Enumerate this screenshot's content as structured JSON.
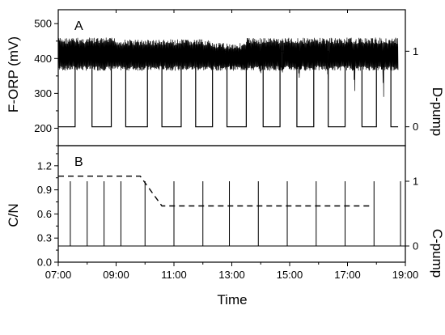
{
  "chart_data": [
    {
      "panel": "A",
      "type": "line",
      "xlabel": "Time",
      "ylabel": "F-ORP (mV)",
      "ylabel_right": "D-pump",
      "ylim": [
        150,
        540
      ],
      "y_right_lim": [
        -0.25,
        1.55
      ],
      "yticks": [
        200,
        300,
        400,
        500
      ],
      "yticks_right": [
        0,
        1
      ],
      "series": [
        {
          "type": "line",
          "oscillation_bands": [
            {
              "x_start": "07:00",
              "x_end": "09:00",
              "low": 365,
              "high": 460
            },
            {
              "x_start": "09:00",
              "x_end": "12:15",
              "low": 365,
              "high": 455
            },
            {
              "x_start": "12:15",
              "x_end": "13:30",
              "low": 365,
              "high": 445
            },
            {
              "x_start": "13:30",
              "x_end": "18:45",
              "low": 365,
              "high": 460
            }
          ],
          "dips": [
            {
              "x": "14:00",
              "min": 358
            },
            {
              "x": "14:45",
              "min": 360
            },
            {
              "x": "15:20",
              "min": 345
            },
            {
              "x": "16:20",
              "min": 340
            },
            {
              "x": "17:15",
              "min": 307
            },
            {
              "x": "18:15",
              "min": 290
            }
          ]
        },
        {
          "type": "step",
          "on_intervals": [
            [
              "07:35",
              "08:10"
            ],
            [
              "08:50",
              "09:20"
            ],
            [
              "10:05",
              "10:35"
            ],
            [
              "11:15",
              "11:45"
            ],
            [
              "12:20",
              "12:50"
            ],
            [
              "13:30",
              "14:05"
            ],
            [
              "14:40",
              "15:15"
            ],
            [
              "15:50",
              "16:20"
            ],
            [
              "16:55",
              "17:30"
            ],
            [
              "18:00",
              "18:30"
            ]
          ]
        }
      ]
    },
    {
      "panel": "B",
      "type": "line",
      "xlabel": "Time",
      "ylabel": "C/N",
      "ylabel_right": "C-pump",
      "ylim": [
        0,
        1.45
      ],
      "y_right_lim": [
        -0.25,
        1.55
      ],
      "yticks": [
        0.0,
        0.3,
        0.6,
        0.9,
        1.2
      ],
      "yticks_right": [
        0,
        1
      ],
      "x": [
        "07:00",
        "09:50",
        "10:35",
        "17:45"
      ],
      "series": [
        {
          "type": "line",
          "style": "dashed",
          "x": [
            "07:00",
            "09:50",
            "10:35",
            "17:45"
          ],
          "values": [
            1.07,
            1.07,
            0.7,
            0.7
          ]
        },
        {
          "type": "pulses",
          "x": [
            "07:25",
            "08:00",
            "08:35",
            "09:10",
            "10:00",
            "11:00",
            "12:00",
            "12:55",
            "13:55",
            "14:55",
            "15:55",
            "16:55",
            "17:55",
            "18:50"
          ]
        }
      ]
    }
  ],
  "panels": {
    "a": {
      "label": "A",
      "ylabel": "F-ORP (mV)",
      "ylabel_right": "D-pump",
      "yticks": [
        "200",
        "300",
        "400",
        "500"
      ],
      "yticks_right": [
        "0",
        "1"
      ]
    },
    "b": {
      "label": "B",
      "ylabel": "C/N",
      "ylabel_right": "C-pump",
      "yticks": [
        "0.0",
        "0.3",
        "0.6",
        "0.9",
        "1.2"
      ],
      "yticks_right": [
        "0",
        "1"
      ]
    }
  },
  "x_axis": {
    "label": "Time",
    "ticks": [
      "07:00",
      "09:00",
      "11:00",
      "13:00",
      "15:00",
      "17:00",
      "19:00"
    ]
  }
}
